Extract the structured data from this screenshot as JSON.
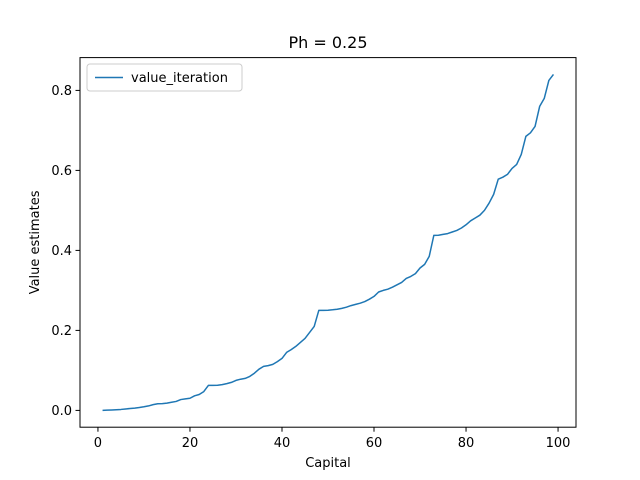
{
  "chart_data": {
    "type": "line",
    "title": "Ph = 0.25",
    "xlabel": "Capital",
    "ylabel": "Value estimates",
    "xlim": [
      -3.9,
      103.9
    ],
    "ylim": [
      -0.042,
      0.882
    ],
    "xticks": [
      0,
      20,
      40,
      60,
      80,
      100
    ],
    "yticks": [
      0.0,
      0.2,
      0.4,
      0.6,
      0.8
    ],
    "xtick_labels": [
      "0",
      "20",
      "40",
      "60",
      "80",
      "100"
    ],
    "ytick_labels": [
      "0.0",
      "0.2",
      "0.4",
      "0.6",
      "0.8"
    ],
    "grid": false,
    "legend": {
      "location": "upper-left"
    },
    "series": [
      {
        "name": "value_iteration",
        "color": "#1f77b4",
        "x": [
          1,
          2,
          3,
          4,
          5,
          6,
          7,
          8,
          9,
          10,
          11,
          12,
          13,
          14,
          15,
          16,
          17,
          18,
          19,
          20,
          21,
          22,
          23,
          24,
          25,
          26,
          27,
          28,
          29,
          30,
          31,
          32,
          33,
          34,
          35,
          36,
          37,
          38,
          39,
          40,
          41,
          42,
          43,
          44,
          45,
          46,
          47,
          48,
          49,
          50,
          51,
          52,
          53,
          54,
          55,
          56,
          57,
          58,
          59,
          60,
          61,
          62,
          63,
          64,
          65,
          66,
          67,
          68,
          69,
          70,
          71,
          72,
          73,
          74,
          75,
          76,
          77,
          78,
          79,
          80,
          81,
          82,
          83,
          84,
          85,
          86,
          87,
          88,
          89,
          90,
          91,
          92,
          93,
          94,
          95,
          96,
          97,
          98,
          99
        ],
        "y": [
          0.0002,
          0.0006,
          0.001,
          0.0016,
          0.0024,
          0.0036,
          0.0048,
          0.0058,
          0.0073,
          0.0091,
          0.0112,
          0.0145,
          0.0166,
          0.017,
          0.0183,
          0.0203,
          0.0224,
          0.0271,
          0.0288,
          0.0304,
          0.0364,
          0.0398,
          0.047,
          0.0625,
          0.0625,
          0.063,
          0.0645,
          0.067,
          0.07,
          0.075,
          0.078,
          0.08,
          0.085,
          0.093,
          0.103,
          0.11,
          0.112,
          0.115,
          0.122,
          0.13,
          0.145,
          0.152,
          0.16,
          0.17,
          0.18,
          0.195,
          0.21,
          0.25,
          0.25,
          0.2505,
          0.2515,
          0.253,
          0.255,
          0.258,
          0.262,
          0.265,
          0.268,
          0.272,
          0.278,
          0.285,
          0.296,
          0.3,
          0.303,
          0.308,
          0.314,
          0.32,
          0.33,
          0.335,
          0.342,
          0.356,
          0.365,
          0.385,
          0.4375,
          0.438,
          0.44,
          0.442,
          0.446,
          0.45,
          0.456,
          0.464,
          0.474,
          0.481,
          0.488,
          0.5,
          0.518,
          0.54,
          0.578,
          0.583,
          0.59,
          0.605,
          0.615,
          0.64,
          0.685,
          0.694,
          0.71,
          0.76,
          0.78,
          0.825,
          0.84
        ]
      }
    ]
  }
}
